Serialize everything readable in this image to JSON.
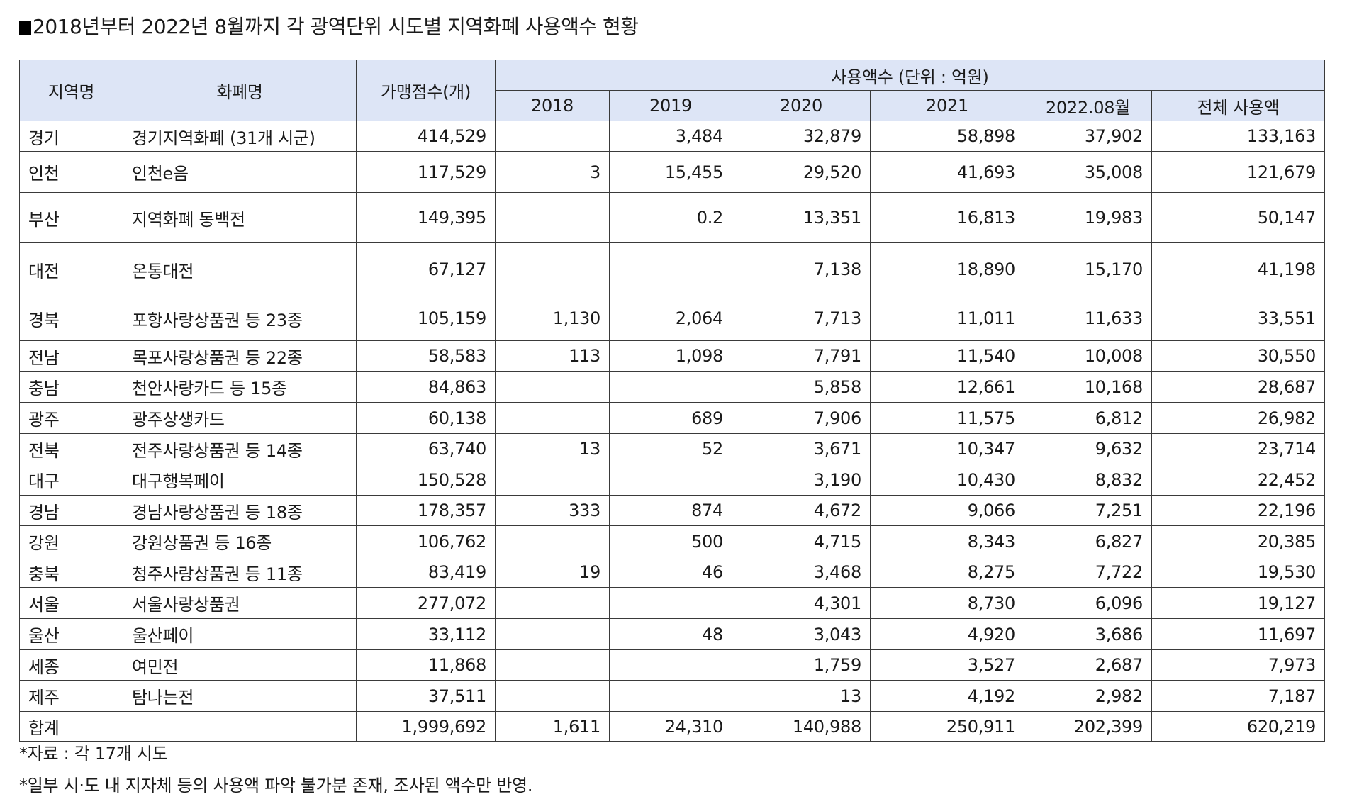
{
  "title": "2018년부터 2022년 8월까지 각 광역단위 시도별 지역화폐 사용액수 현황",
  "table": {
    "headers": {
      "region": "지역명",
      "currency": "화폐명",
      "merchants": "가맹점수(개)",
      "usage_group": "사용액수 (단위 : 억원)",
      "years": [
        "2018",
        "2019",
        "2020",
        "2021",
        "2022.08월",
        "전체 사용액"
      ]
    },
    "rows": [
      {
        "region": "경기",
        "currency": "경기지역화폐 (31개 시군)",
        "merchants": "414,529",
        "y2018": "",
        "y2019": "3,484",
        "y2020": "32,879",
        "y2021": "58,898",
        "y2022": "37,902",
        "total": "133,163"
      },
      {
        "region": "인천",
        "currency": "인천e음",
        "merchants": "117,529",
        "y2018": "3",
        "y2019": "15,455",
        "y2020": "29,520",
        "y2021": "41,693",
        "y2022": "35,008",
        "total": "121,679"
      },
      {
        "region": "부산",
        "currency": "지역화폐 동백전",
        "merchants": "149,395",
        "y2018": "",
        "y2019": "0.2",
        "y2020": "13,351",
        "y2021": "16,813",
        "y2022": "19,983",
        "total": "50,147"
      },
      {
        "region": "대전",
        "currency": "온통대전",
        "merchants": "67,127",
        "y2018": "",
        "y2019": "",
        "y2020": "7,138",
        "y2021": "18,890",
        "y2022": "15,170",
        "total": "41,198"
      },
      {
        "region": "경북",
        "currency": "포항사랑상품권 등 23종",
        "merchants": "105,159",
        "y2018": "1,130",
        "y2019": "2,064",
        "y2020": "7,713",
        "y2021": "11,011",
        "y2022": "11,633",
        "total": "33,551"
      },
      {
        "region": "전남",
        "currency": "목포사랑상품권 등 22종",
        "merchants": "58,583",
        "y2018": "113",
        "y2019": "1,098",
        "y2020": "7,791",
        "y2021": "11,540",
        "y2022": "10,008",
        "total": "30,550"
      },
      {
        "region": "충남",
        "currency": "천안사랑카드 등 15종",
        "merchants": "84,863",
        "y2018": "",
        "y2019": "",
        "y2020": "5,858",
        "y2021": "12,661",
        "y2022": "10,168",
        "total": "28,687"
      },
      {
        "region": "광주",
        "currency": "광주상생카드",
        "merchants": "60,138",
        "y2018": "",
        "y2019": "689",
        "y2020": "7,906",
        "y2021": "11,575",
        "y2022": "6,812",
        "total": "26,982"
      },
      {
        "region": "전북",
        "currency": "전주사랑상품권 등 14종",
        "merchants": "63,740",
        "y2018": "13",
        "y2019": "52",
        "y2020": "3,671",
        "y2021": "10,347",
        "y2022": "9,632",
        "total": "23,714"
      },
      {
        "region": "대구",
        "currency": "대구행복페이",
        "merchants": "150,528",
        "y2018": "",
        "y2019": "",
        "y2020": "3,190",
        "y2021": "10,430",
        "y2022": "8,832",
        "total": "22,452"
      },
      {
        "region": "경남",
        "currency": "경남사랑상품권 등 18종",
        "merchants": "178,357",
        "y2018": "333",
        "y2019": "874",
        "y2020": "4,672",
        "y2021": "9,066",
        "y2022": "7,251",
        "total": "22,196"
      },
      {
        "region": "강원",
        "currency": "강원상품권 등 16종",
        "merchants": "106,762",
        "y2018": "",
        "y2019": "500",
        "y2020": "4,715",
        "y2021": "8,343",
        "y2022": "6,827",
        "total": "20,385"
      },
      {
        "region": "충북",
        "currency": "청주사랑상품권 등 11종",
        "merchants": "83,419",
        "y2018": "19",
        "y2019": "46",
        "y2020": "3,468",
        "y2021": "8,275",
        "y2022": "7,722",
        "total": "19,530"
      },
      {
        "region": "서울",
        "currency": "서울사랑상품권",
        "merchants": "277,072",
        "y2018": "",
        "y2019": "",
        "y2020": "4,301",
        "y2021": "8,730",
        "y2022": "6,096",
        "total": "19,127"
      },
      {
        "region": "울산",
        "currency": "울산페이",
        "merchants": "33,112",
        "y2018": "",
        "y2019": "48",
        "y2020": "3,043",
        "y2021": "4,920",
        "y2022": "3,686",
        "total": "11,697"
      },
      {
        "region": "세종",
        "currency": "여민전",
        "merchants": "11,868",
        "y2018": "",
        "y2019": "",
        "y2020": "1,759",
        "y2021": "3,527",
        "y2022": "2,687",
        "total": "7,973"
      },
      {
        "region": "제주",
        "currency": "탐나는전",
        "merchants": "37,511",
        "y2018": "",
        "y2019": "",
        "y2020": "13",
        "y2021": "4,192",
        "y2022": "2,982",
        "total": "7,187"
      },
      {
        "region": "합계",
        "currency": "",
        "merchants": "1,999,692",
        "y2018": "1,611",
        "y2019": "24,310",
        "y2020": "140,988",
        "y2021": "250,911",
        "y2022": "202,399",
        "total": "620,219"
      }
    ]
  },
  "footnotes": [
    "*자료 : 각 17개 시도",
    "*일부 시·도 내 지자체 등의 사용액 파악 불가분 존재, 조사된 액수만 반영."
  ],
  "colors": {
    "header_bg": "#dde5f6",
    "border": "#3a3a3a"
  }
}
